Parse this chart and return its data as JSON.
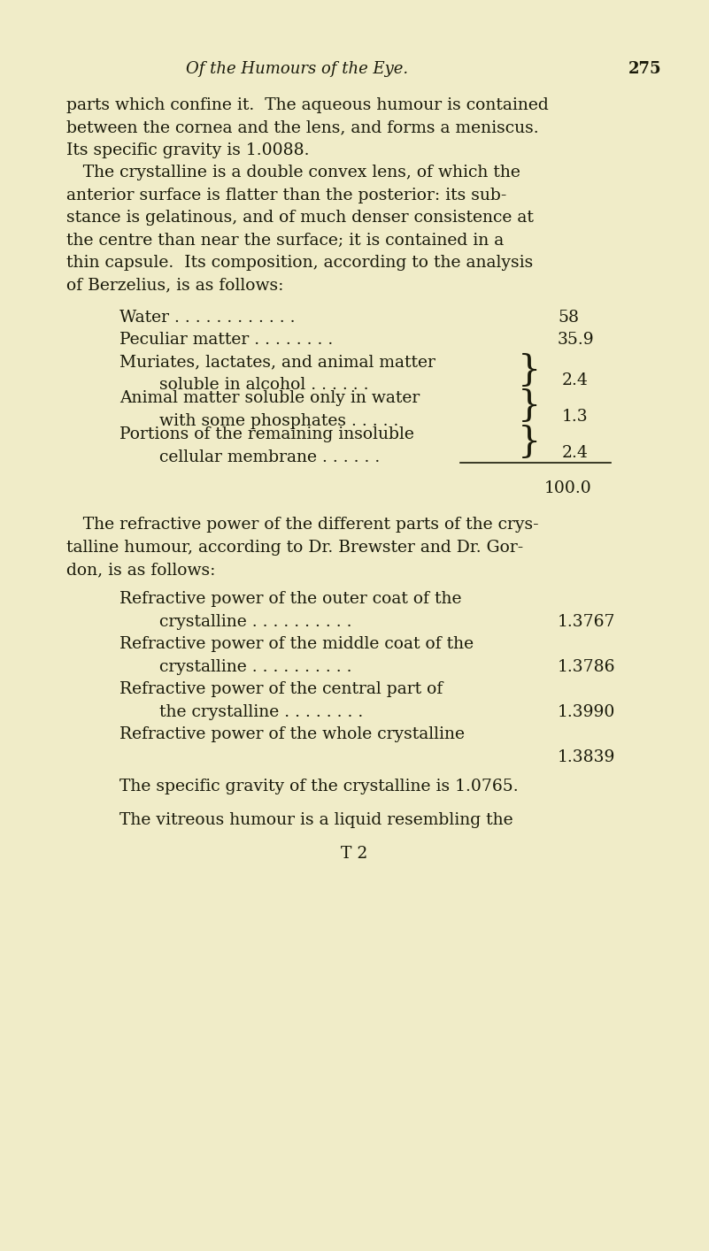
{
  "bg_color": "#f0ecc8",
  "text_color": "#1a1a0a",
  "page_title_left": "Of the Humours of the Eye.",
  "page_number": "275",
  "body_lines": [
    "parts which confine it.  The aqueous humour is contained",
    "between the cornea and the lens, and forms a meniscus.",
    "Its specific gravity is 1.0088.",
    " The crystalline is a double convex lens, of which the",
    "anterior surface is flatter than the posterior: its sub-",
    "stance is gelatinous, and of much denser consistence at",
    "the centre than near the surface; it is contained in a",
    "thin capsule.  Its composition, according to the analysis",
    "of Berzelius, is as follows:"
  ],
  "water_label": "Water . . . . . . . . . . . .",
  "water_value": "58",
  "peculiar_label": "Peculiar matter . . . . . . . .",
  "peculiar_value": "35.9",
  "muriates_label": "Muriates, lactates, and animal matter",
  "muriates_sub": "soluble in alcohol . . . . . .",
  "muriates_value": "2.4",
  "animal_label": "Animal matter soluble only in water",
  "animal_sub": "with some phosphates . . . . .",
  "animal_value": "1.3",
  "portions_label": "Portions of the remaining insoluble",
  "portions_sub": "cellular membrane . . . . . .",
  "portions_value": "2.4",
  "total_value": "100.0",
  "refractive_intro": [
    " The refractive power of the different parts of the crys-",
    "talline humour, according to Dr. Brewster and Dr. Gor-",
    "don, is as follows:"
  ],
  "rf_items": [
    {
      "label": "Refractive power of the outer coat of the",
      "sub": "crystalline . . . . . . . . . .",
      "value": "1.3767"
    },
    {
      "label": "Refractive power of the middle coat of the",
      "sub": "crystalline . . . . . . . . . .",
      "value": "1.3786"
    },
    {
      "label": "Refractive power of the central part of",
      "sub": "the crystalline . . . . . . . .",
      "value": "1.3990"
    },
    {
      "label": "Refractive power of the whole crystalline",
      "sub": "",
      "value": "1.3839"
    }
  ],
  "specific_gravity_line": "The specific gravity of the crystalline is 1.0765.",
  "final_line": "The vitreous humour is a liquid resembling the",
  "footer": "T 2",
  "font_size_pts": 13.5,
  "header_font_size_pts": 13.0
}
